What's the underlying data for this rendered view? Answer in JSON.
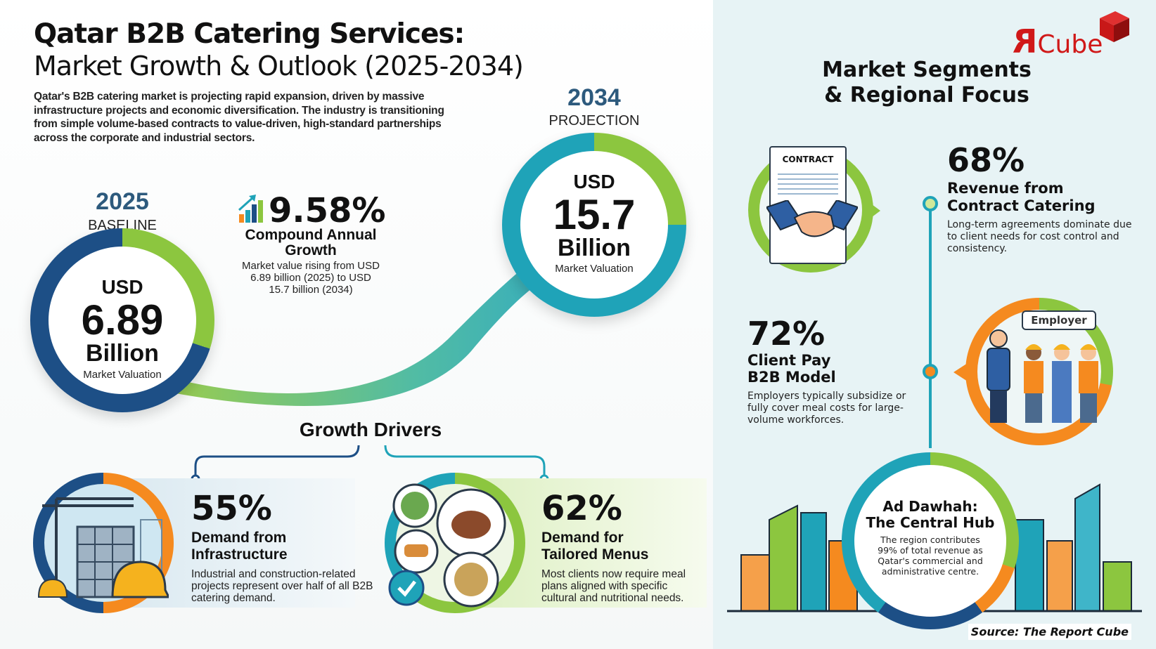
{
  "header": {
    "title_line1": "Qatar B2B Catering Services:",
    "title_line2": "Market Growth & Outlook (2025-2034)",
    "intro": "Qatar's B2B catering market is projecting rapid expansion, driven by massive infrastructure projects and economic diversification. The industry is transitioning from simple volume-based contracts to value-driven, high-standard partnerships across the corporate and industrial sectors."
  },
  "baseline": {
    "year": "2025",
    "label": "BASELINE",
    "currency": "USD",
    "value": "6.89",
    "unit": "Billion",
    "caption": "Market Valuation"
  },
  "projection": {
    "year": "2034",
    "label": "PROJECTION",
    "currency": "USD",
    "value": "15.7",
    "unit": "Billion",
    "caption": "Market Valuation"
  },
  "cagr": {
    "value": "9.58%",
    "label": "Compound Annual Growth",
    "body": "Market value rising from USD 6.89 billion (2025) to USD 15.7 billion (2034)",
    "icon": "bar-chart-up-icon"
  },
  "drivers": {
    "title": "Growth Drivers",
    "items": [
      {
        "pct": "55%",
        "label_line1": "Demand from",
        "label_line2": "Infrastructure",
        "body": "Industrial and construction-related projects represent over half of all B2B catering demand.",
        "icon": "construction-icon"
      },
      {
        "pct": "62%",
        "label_line1": "Demand for",
        "label_line2": "Tailored Menus",
        "body": "Most clients now require meal plans aligned with specific cultural and nutritional needs.",
        "icon": "meal-plates-icon"
      }
    ]
  },
  "segments": {
    "title_line1": "Market Segments",
    "title_line2": "& Regional Focus",
    "contract": {
      "pct": "68%",
      "label_line1": "Revenue from",
      "label_line2": "Contract Catering",
      "body": "Long-term agreements dominate due to client needs for cost control and consistency.",
      "icon_text": "CONTRACT"
    },
    "client_pay": {
      "pct": "72%",
      "label_line1": "Client Pay",
      "label_line2": "B2B Model",
      "body": "Employers typically subsidize or fully cover meal costs for large-volume workforces.",
      "bubble": "Employer"
    },
    "region": {
      "title_line1": "Ad Dawhah:",
      "title_line2": "The Central Hub",
      "body": "The region contributes 99% of total revenue as Qatar's commercial and administrative centre."
    }
  },
  "logo": {
    "text": "RCube"
  },
  "source": "Source: The Report Cube",
  "colors": {
    "navy": "#1d4f86",
    "teal": "#1fa3b8",
    "green": "#8cc63f",
    "orange": "#f58a1f",
    "red": "#d01818"
  }
}
